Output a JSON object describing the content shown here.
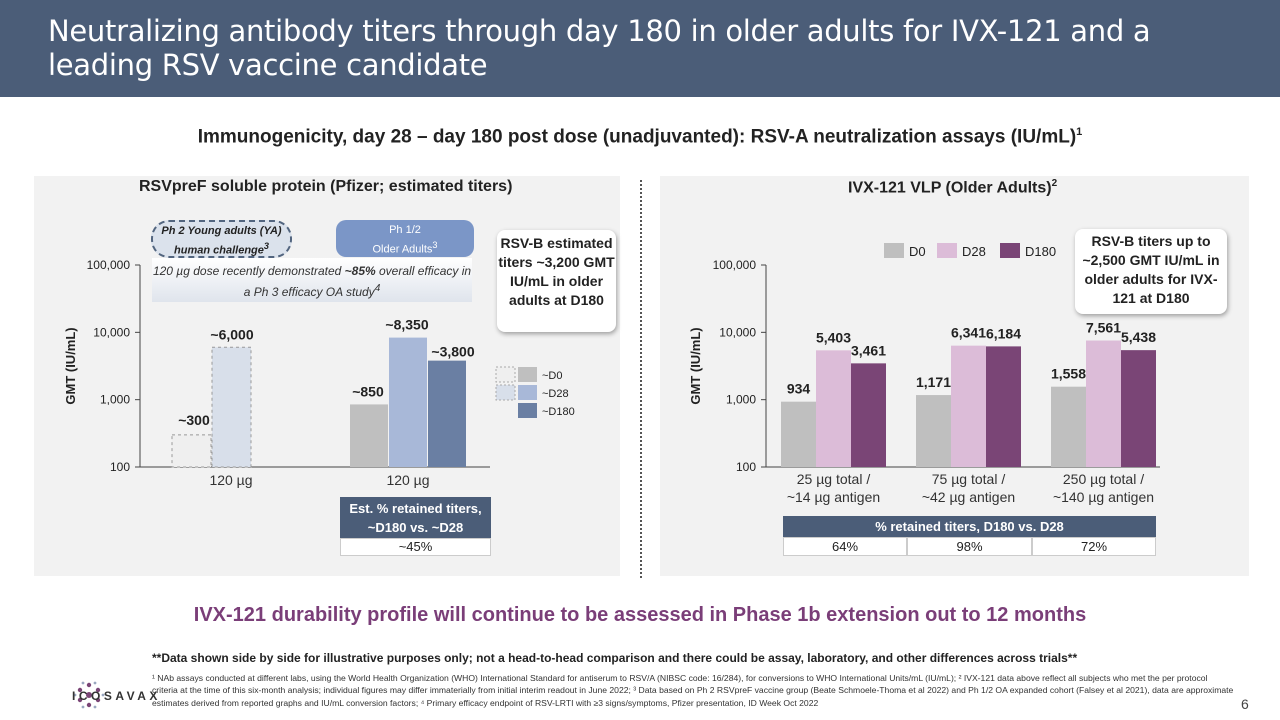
{
  "title": "Neutralizing antibody titers through day 180 in older adults for IVX-121 and a leading RSV vaccine candidate",
  "subtitle": "Immunogenicity, day 28 – day 180 post dose (unadjuvanted): RSV-A neutralization assays (IU/mL)",
  "subtitle_sup": "1",
  "left_panel": {
    "title": "RSVpreF soluble protein (Pfizer; estimated titers)",
    "pill_ya_line1": "Ph 2 Young adults (YA)",
    "pill_ya_line2": "human challenge",
    "pill_ya_sup": "3",
    "pill_oa_line1": "Ph 1/2",
    "pill_oa_line2": "Older Adults",
    "pill_oa_sup": "3",
    "efficacy_note_1": "120 µg dose recently demonstrated ",
    "efficacy_note_bold": "~85%",
    "efficacy_note_2": " overall efficacy in a Ph 3 efficacy OA study",
    "efficacy_note_sup": "4",
    "callout": "RSV-B estimated titers ~3,200 GMT IU/mL in older adults at D180",
    "table_header": "Est. % retained titers, ~D180 vs. ~D28",
    "table_value": "~45%"
  },
  "right_panel": {
    "title": "IVX-121 VLP (Older Adults)",
    "title_sup": "2",
    "callout": "RSV-B titers up to ~2,500 GMT IU/mL in older adults for IVX-121 at D180",
    "table_header": "% retained titers, D180 vs. D28",
    "table_values": [
      "64%",
      "98%",
      "72%"
    ]
  },
  "chart_data": [
    {
      "type": "bar",
      "title": "RSVpreF soluble protein (Pfizer; estimated titers)",
      "ylabel": "GMT (IU/mL)",
      "yscale": "log",
      "ylim": [
        100,
        100000
      ],
      "yticks": [
        "100",
        "1,000",
        "10,000",
        "100,000"
      ],
      "categories": [
        "120 µg",
        "120 µg"
      ],
      "legend": [
        "~D0",
        "~D28",
        "~D180"
      ],
      "legend_position": "right",
      "series": [
        {
          "name": "~D0",
          "values": [
            300,
            null
          ],
          "labels": [
            "~300",
            ""
          ],
          "color": "#efefef"
        },
        {
          "name": "~D28",
          "values": [
            6000,
            8350
          ],
          "labels": [
            "~6,000",
            "~8,350"
          ],
          "color": "#a8b8d8"
        },
        {
          "name": "~D180",
          "values": [
            null,
            3800
          ],
          "labels": [
            "",
            "~3,800"
          ],
          "color": "#6a7fa3"
        }
      ],
      "extra_bars": [
        {
          "name": "~D0",
          "category_index": 1,
          "value": 850,
          "label": "~850",
          "color": "#bfbfbf"
        }
      ]
    },
    {
      "type": "bar",
      "title": "IVX-121 VLP (Older Adults)",
      "ylabel": "GMT (IU/mL)",
      "yscale": "log",
      "ylim": [
        100,
        100000
      ],
      "yticks": [
        "100",
        "1,000",
        "10,000",
        "100,000"
      ],
      "categories": [
        "25 µg total / ~14 µg antigen",
        "75 µg total / ~42 µg antigen",
        "250 µg total / ~140 µg antigen"
      ],
      "category_lines": [
        [
          "25 µg total /",
          "~14 µg antigen"
        ],
        [
          "75 µg total /",
          "~42 µg antigen"
        ],
        [
          "250 µg total /",
          "~140 µg antigen"
        ]
      ],
      "legend_position": "top",
      "series": [
        {
          "name": "D0",
          "values": [
            934,
            1171,
            1558
          ],
          "labels": [
            "934",
            "1,171",
            "1,558"
          ],
          "color": "#bfbfbf"
        },
        {
          "name": "D28",
          "values": [
            5403,
            6341,
            7561
          ],
          "labels": [
            "5,403",
            "6,341",
            "7,561"
          ],
          "color": "#dcbcd8"
        },
        {
          "name": "D180",
          "values": [
            3461,
            6184,
            5438
          ],
          "labels": [
            "3,461",
            "6,184",
            "5,438"
          ],
          "color": "#7a4576"
        }
      ]
    }
  ],
  "headline": "IVX-121 durability profile will continue to be assessed in Phase 1b extension out to 12 months",
  "disclaimer": "**Data shown side by side for illustrative purposes only; not a head-to-head comparison and there could be assay, laboratory, and other differences across trials**",
  "footnotes": "¹ NAb assays conducted at different labs, using the World Health Organization (WHO) International Standard for antiserum to RSV/A (NIBSC code: 16/284), for conversions to WHO International Units/mL (IU/mL); ² IVX-121 data above reflect all subjects who met the per protocol criteria at the time of this six-month analysis; individual figures may differ immaterially from initial interim readout in June 2022; ³ Data based on Ph 2 RSVpreF vaccine group (Beate Schmoele-Thoma et al 2022) and Ph 1/2 OA expanded cohort (Falsey et al 2021), data are approximate estimates derived from reported graphs and IU/mL conversion factors; ⁴ Primary efficacy endpoint of RSV-LRTI with ≥3 signs/symptoms, Pfizer presentation, ID Week Oct 2022",
  "logo_text": "ICOSAVAX",
  "page_number": "6"
}
